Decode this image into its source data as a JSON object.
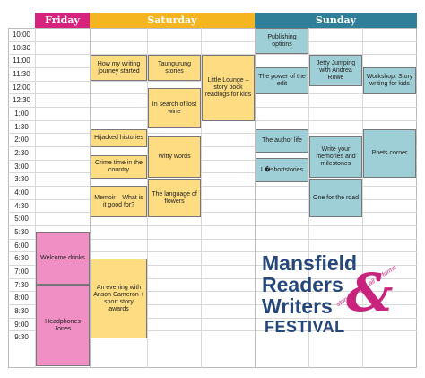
{
  "days": {
    "friday": "Friday",
    "saturday": "Saturday",
    "sunday": "Sunday"
  },
  "colors": {
    "friday": "#d6237d",
    "saturday": "#f5b520",
    "sunday": "#2e7f97",
    "yellow": "#fddc82",
    "blue": "#9fcfd6",
    "pink": "#f08fc4",
    "logo_blue": "#25477a",
    "logo_pink": "#c8237d"
  },
  "times": [
    "10:00",
    "10:30",
    "11:00",
    "11:30",
    "12:00",
    "12:30",
    "1:00",
    "1:30",
    "2:00",
    "2:30",
    "3:00",
    "3:30",
    "4:00",
    "4:30",
    "5:00",
    "5:30",
    "6:00",
    "6:30",
    "7:00",
    "7:30",
    "8:00",
    "8:30",
    "9:00",
    "9:30"
  ],
  "events": {
    "sat_how_my_writing": "How my writing journey started",
    "sat_taungurung": "Taungurung stories",
    "sat_little_lounge": "Little Lounge – story book readings for kids",
    "sat_lost_wine": "In search of lost wine",
    "sat_hijacked": "Hijacked histories",
    "sat_crime": "Crime time in the country",
    "sat_witty": "Witty words",
    "sat_memoir": "Memoir – What is it good for?",
    "sat_language": "The language of flowers",
    "sat_evening": "An evening with Anson Cameron + short story awards",
    "sun_publishing": "Publishing options",
    "sun_power": "The power of the edit",
    "sun_jetty": "Jetty Jumping with Andrea Rowe",
    "sun_workshop": "Workshop: Story writing for kids",
    "sun_author": "The author life",
    "sun_memories": "Write your memories and milestones",
    "sun_poets": "Poets corner",
    "sun_shortstories": "I �shortstories",
    "sun_one_road": "One for the road",
    "fri_welcome": "Welcome drinks",
    "fri_headphones": "Headphones Jones"
  },
  "logo": {
    "line1": "Mansfield",
    "line2": "Readers",
    "line3": "Writers",
    "ampersand": "&",
    "festival": "FESTIVAL",
    "tagline": "storytelling in all its forms"
  }
}
